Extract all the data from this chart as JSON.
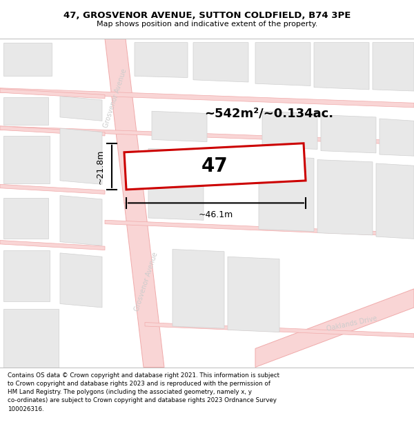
{
  "title_line1": "47, GROSVENOR AVENUE, SUTTON COLDFIELD, B74 3PE",
  "title_line2": "Map shows position and indicative extent of the property.",
  "footer_text": "Contains OS data © Crown copyright and database right 2021. This information is subject\nto Crown copyright and database rights 2023 and is reproduced with the permission of\nHM Land Registry. The polygons (including the associated geometry, namely x, y\nco-ordinates) are subject to Crown copyright and database rights 2023 Ordnance Survey\n100026316.",
  "bg_color": "#ffffff",
  "map_bg": "#ffffff",
  "road_fill": "#f9d5d5",
  "road_line": "#f0aaaa",
  "road_line_thin": "#f0aaaa",
  "building_fill": "#e8e8e8",
  "building_line": "#d0d0d0",
  "plot_fill": "#ffffff",
  "plot_line": "#cc0000",
  "plot_lw": 2.0,
  "area_text": "~542m²/~0.134ac.",
  "plot_number": "47",
  "dim_w": "~46.1m",
  "dim_h": "~21.8m",
  "label_ga_upper": "Grosvenor Avenue",
  "label_ga_lower": "Grosvenor Avenue",
  "label_oak": "Oaklands Drive",
  "label_color": "#cccccc",
  "title_fs": 9.5,
  "subtitle_fs": 8.0,
  "footer_fs": 6.3
}
